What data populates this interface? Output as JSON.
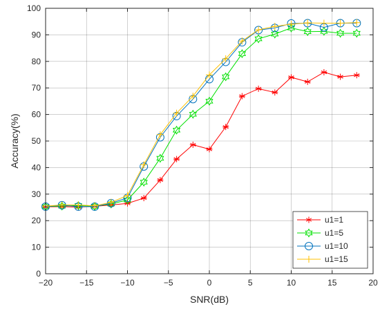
{
  "chart_data": {
    "type": "line",
    "title": "",
    "xlabel": "SNR(dB)",
    "ylabel": "Accuracy(%)",
    "xlim": [
      -20,
      20
    ],
    "ylim": [
      0,
      100
    ],
    "xticks": [
      -20,
      -15,
      -10,
      -5,
      0,
      5,
      10,
      15,
      20
    ],
    "yticks": [
      0,
      10,
      20,
      30,
      40,
      50,
      60,
      70,
      80,
      90,
      100
    ],
    "xtick_labels": [
      "−20",
      "−15",
      "−10",
      "−5",
      "0",
      "5",
      "10",
      "15",
      "20"
    ],
    "ytick_labels": [
      "0",
      "10",
      "20",
      "30",
      "40",
      "50",
      "60",
      "70",
      "80",
      "90",
      "100"
    ],
    "grid": true,
    "legend_position": "bottom-right",
    "x": [
      -20,
      -18,
      -16,
      -14,
      -12,
      -10,
      -8,
      -6,
      -4,
      -2,
      0,
      2,
      4,
      6,
      8,
      10,
      12,
      14,
      16,
      18
    ],
    "series": [
      {
        "name": "u1=1",
        "color": "#ff0000",
        "marker": "asterisk",
        "values": [
          25.2,
          25.3,
          25.1,
          25.4,
          25.9,
          26.5,
          28.5,
          35.3,
          43.2,
          48.6,
          46.9,
          55.3,
          66.9,
          69.7,
          68.3,
          74.0,
          72.3,
          75.9,
          74.2,
          74.8
        ]
      },
      {
        "name": "u1=5",
        "color": "#00e000",
        "marker": "hexagram",
        "values": [
          25.3,
          25.5,
          25.7,
          25.4,
          26.3,
          27.8,
          34.5,
          43.5,
          54.1,
          60.1,
          65.0,
          74.2,
          82.9,
          88.5,
          90.3,
          92.6,
          91.2,
          91.3,
          90.6,
          90.6
        ]
      },
      {
        "name": "u1=10",
        "color": "#0072bd",
        "marker": "circle",
        "values": [
          25.3,
          25.8,
          25.3,
          25.3,
          26.6,
          28.6,
          40.4,
          51.4,
          59.4,
          65.8,
          73.3,
          79.8,
          87.2,
          91.8,
          92.6,
          94.3,
          94.4,
          92.8,
          94.4,
          94.4
        ]
      },
      {
        "name": "u1=15",
        "color": "#ffc000",
        "marker": "plus",
        "values": [
          25.5,
          25.9,
          25.9,
          25.6,
          26.9,
          29.5,
          41.1,
          52.4,
          60.5,
          66.9,
          74.9,
          81.0,
          87.7,
          91.9,
          93.2,
          94.0,
          94.5,
          94.4,
          94.4,
          94.6
        ]
      }
    ]
  }
}
